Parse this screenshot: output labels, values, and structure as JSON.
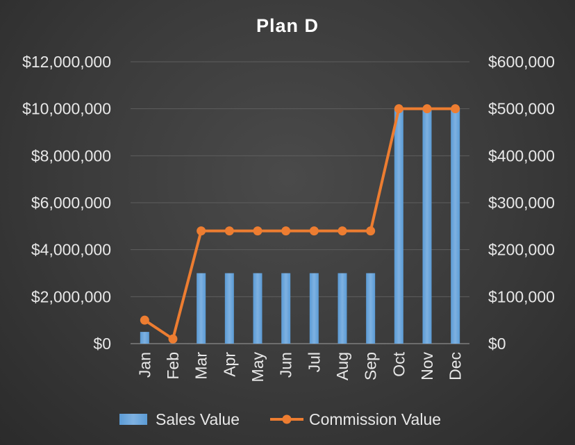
{
  "chart_data": {
    "type": "bar",
    "title": "Plan D",
    "categories": [
      "Jan",
      "Feb",
      "Mar",
      "Apr",
      "May",
      "Jun",
      "Jul",
      "Aug",
      "Sep",
      "Oct",
      "Nov",
      "Dec"
    ],
    "series": [
      {
        "name": "Sales Value",
        "type": "bar",
        "axis": "left",
        "values": [
          500000,
          0,
          3000000,
          3000000,
          3000000,
          3000000,
          3000000,
          3000000,
          3000000,
          10000000,
          10000000,
          10000000
        ]
      },
      {
        "name": "Commission Value",
        "type": "line",
        "axis": "right",
        "values": [
          50000,
          10000,
          240000,
          240000,
          240000,
          240000,
          240000,
          240000,
          240000,
          500000,
          500000,
          500000
        ]
      }
    ],
    "y_left": {
      "ylim": [
        0,
        12000000
      ],
      "ticks": [
        0,
        2000000,
        4000000,
        6000000,
        8000000,
        10000000,
        12000000
      ],
      "tick_labels": [
        "$0",
        "$2,000,000",
        "$4,000,000",
        "$6,000,000",
        "$8,000,000",
        "$10,000,000",
        "$12,000,000"
      ]
    },
    "y_right": {
      "ylim": [
        0,
        600000
      ],
      "ticks": [
        0,
        100000,
        200000,
        300000,
        400000,
        500000,
        600000
      ],
      "tick_labels": [
        "$0",
        "$100,000",
        "$200,000",
        "$300,000",
        "$400,000",
        "$500,000",
        "$600,000"
      ]
    },
    "grid": true,
    "legend_position": "bottom",
    "colors": {
      "bar": "#5b9bd5",
      "bar_light": "#7eb1e1",
      "line": "#ed7d31",
      "grid": "#5e5e5e",
      "axis": "#8a8a8a",
      "text": "#e8e8e8",
      "title": "#ffffff"
    }
  }
}
